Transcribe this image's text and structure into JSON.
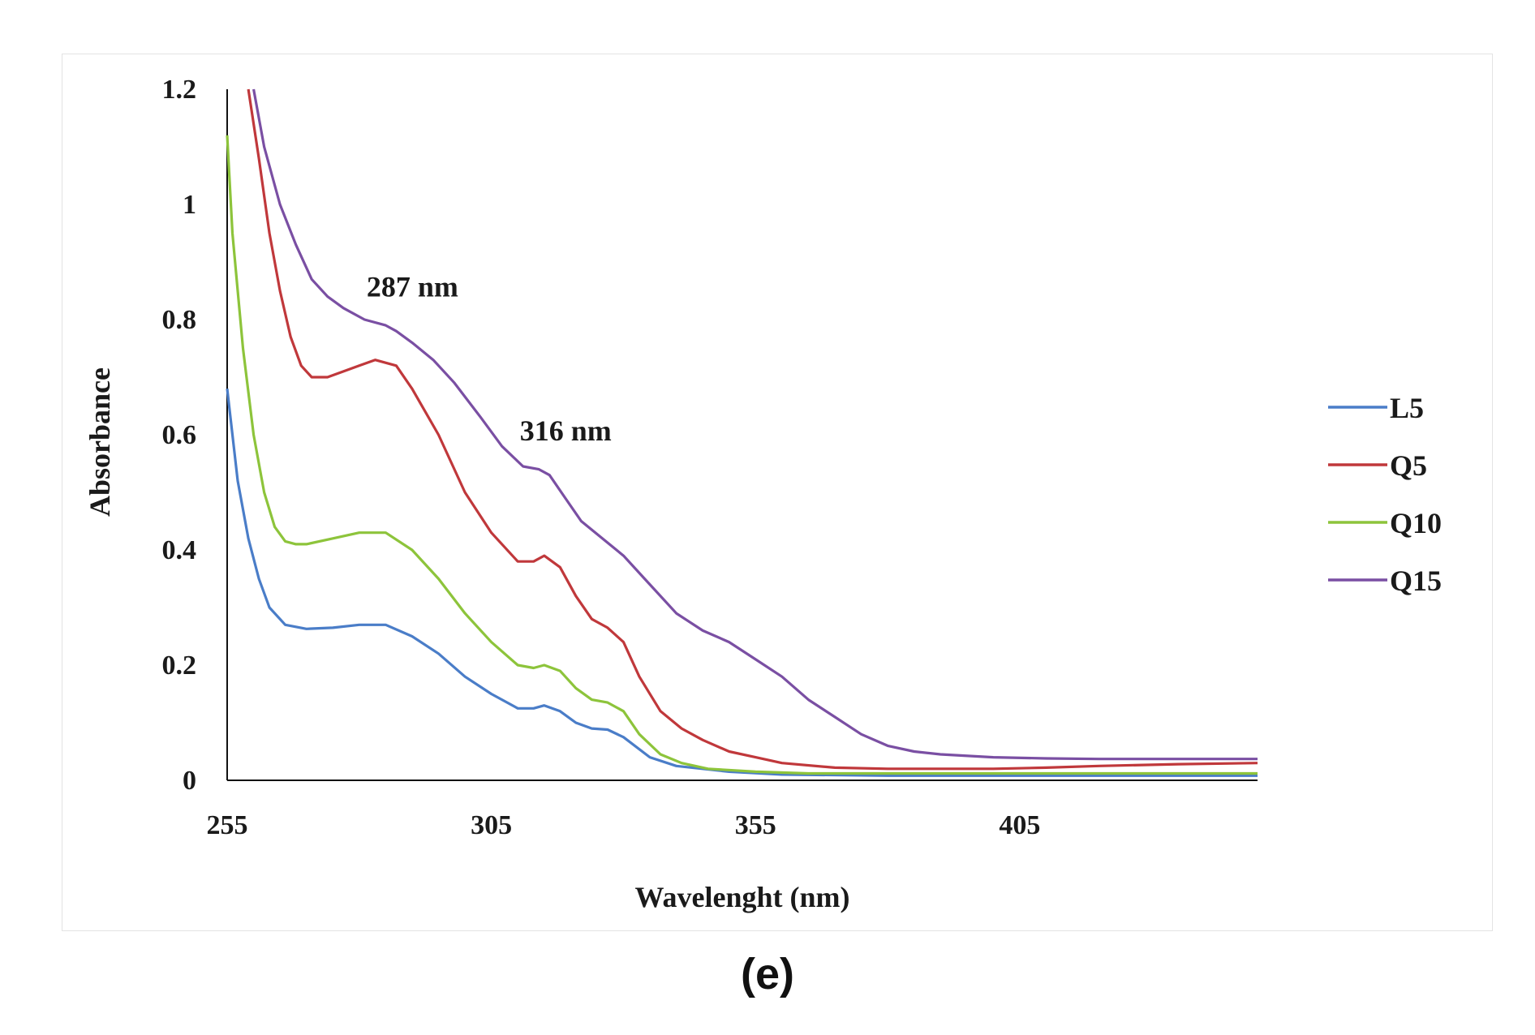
{
  "chart_data": {
    "type": "line",
    "title": "",
    "xlabel": "Wavelenght (nm)",
    "ylabel": "Absorbance",
    "xlim": [
      255,
      450
    ],
    "ylim": [
      0,
      1.2
    ],
    "xticks": [
      255,
      305,
      355,
      405
    ],
    "yticks": [
      0,
      0.2,
      0.4,
      0.6,
      0.8,
      1,
      1.2
    ],
    "ytick_labels": [
      "0",
      "0.2",
      "0.4",
      "0.6",
      "0.8",
      "1",
      "1.2"
    ],
    "legend_position": "right",
    "annotations": [
      {
        "text": "287 nm",
        "x": 287,
        "y": 0.84
      },
      {
        "text": "316 nm",
        "x": 316,
        "y": 0.59
      }
    ],
    "series": [
      {
        "name": "L5",
        "color": "#4a7dc8",
        "x": [
          255,
          257,
          259,
          261,
          263,
          266,
          270,
          275,
          280,
          285,
          290,
          295,
          300,
          305,
          310,
          313,
          315,
          318,
          321,
          324,
          327,
          330,
          335,
          340,
          350,
          360,
          380,
          400,
          420,
          450
        ],
        "y": [
          0.68,
          0.52,
          0.42,
          0.35,
          0.3,
          0.27,
          0.263,
          0.265,
          0.27,
          0.27,
          0.25,
          0.22,
          0.18,
          0.15,
          0.125,
          0.125,
          0.13,
          0.12,
          0.1,
          0.09,
          0.088,
          0.075,
          0.04,
          0.025,
          0.015,
          0.01,
          0.008,
          0.008,
          0.008,
          0.008
        ]
      },
      {
        "name": "Q5",
        "color": "#c0383b",
        "x": [
          259,
          261,
          263,
          265,
          267,
          269,
          271,
          274,
          277,
          280,
          283,
          287,
          290,
          295,
          300,
          305,
          310,
          313,
          315,
          318,
          321,
          324,
          327,
          330,
          333,
          337,
          341,
          345,
          350,
          355,
          360,
          370,
          380,
          390,
          400,
          410,
          420,
          435,
          450
        ],
        "y": [
          1.2,
          1.08,
          0.95,
          0.85,
          0.77,
          0.72,
          0.7,
          0.7,
          0.71,
          0.72,
          0.73,
          0.72,
          0.68,
          0.6,
          0.5,
          0.43,
          0.38,
          0.38,
          0.39,
          0.37,
          0.32,
          0.28,
          0.265,
          0.24,
          0.18,
          0.12,
          0.09,
          0.07,
          0.05,
          0.04,
          0.03,
          0.022,
          0.02,
          0.02,
          0.02,
          0.022,
          0.025,
          0.028,
          0.03
        ]
      },
      {
        "name": "Q10",
        "color": "#8dc43b",
        "x": [
          255,
          256,
          258,
          260,
          262,
          264,
          266,
          268,
          270,
          275,
          280,
          285,
          290,
          295,
          300,
          305,
          310,
          313,
          315,
          318,
          321,
          324,
          327,
          330,
          333,
          337,
          341,
          346,
          355,
          365,
          380,
          400,
          420,
          450
        ],
        "y": [
          1.12,
          0.95,
          0.75,
          0.6,
          0.5,
          0.44,
          0.415,
          0.41,
          0.41,
          0.42,
          0.43,
          0.43,
          0.4,
          0.35,
          0.29,
          0.24,
          0.2,
          0.195,
          0.2,
          0.19,
          0.16,
          0.14,
          0.135,
          0.12,
          0.08,
          0.045,
          0.03,
          0.02,
          0.015,
          0.012,
          0.012,
          0.012,
          0.012,
          0.012
        ]
      },
      {
        "name": "Q15",
        "color": "#7a4fa3",
        "x": [
          260,
          262,
          265,
          268,
          271,
          274,
          277,
          281,
          285,
          287,
          290,
          294,
          298,
          303,
          307,
          311,
          314,
          316,
          319,
          322,
          326,
          330,
          334,
          340,
          345,
          350,
          355,
          360,
          365,
          370,
          375,
          380,
          385,
          390,
          400,
          410,
          420,
          435,
          450
        ],
        "y": [
          1.2,
          1.1,
          1.0,
          0.93,
          0.87,
          0.84,
          0.82,
          0.8,
          0.79,
          0.78,
          0.76,
          0.73,
          0.69,
          0.63,
          0.58,
          0.545,
          0.54,
          0.53,
          0.49,
          0.45,
          0.42,
          0.39,
          0.35,
          0.29,
          0.26,
          0.24,
          0.21,
          0.18,
          0.14,
          0.11,
          0.08,
          0.06,
          0.05,
          0.045,
          0.04,
          0.038,
          0.037,
          0.037,
          0.037
        ]
      }
    ]
  },
  "panel_label": "(e)"
}
